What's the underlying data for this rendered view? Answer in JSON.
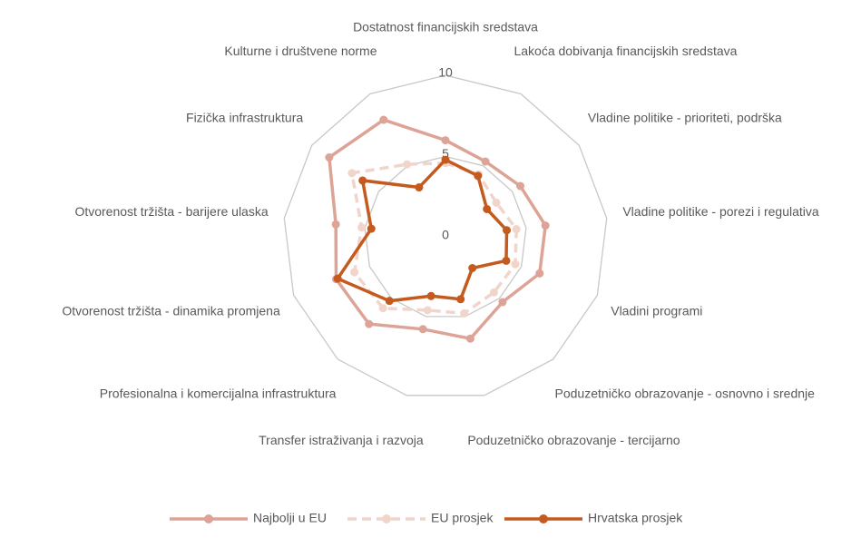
{
  "chart_data": {
    "type": "radar",
    "categories": [
      "Dostatnost financijskih sredstava",
      "Lakoća dobivanja financijskih sredstava",
      "Vladine politike - prioriteti, podrška",
      "Vladine politike - porezi i regulativa",
      "Vladini programi",
      "Poduzetničko obrazovanje - osnovno i srednje",
      "Poduzetničko obrazovanje - tercijarno",
      "Transfer istraživanja i razvoja",
      "Profesionalna i komercijalna  infrastruktura",
      "Otvorenost tržišta - dinamika promjena",
      "Otvorenost tržišta - barijere ulaska",
      "Fizička infrastruktura",
      "Kulturne i društvene norme"
    ],
    "series": [
      {
        "name": "Najbolji u EU",
        "color": "#dca396",
        "dashed": false,
        "values": [
          6.0,
          5.3,
          5.6,
          6.2,
          6.2,
          5.3,
          6.4,
          5.8,
          7.1,
          7.2,
          6.8,
          8.7,
          8.2
        ]
      },
      {
        "name": "EU prosjek",
        "color": "#f1d4ca",
        "dashed": true,
        "values": [
          4.6,
          4.4,
          3.8,
          4.4,
          4.6,
          4.5,
          4.8,
          4.6,
          5.8,
          6.0,
          5.2,
          7.0,
          5.1
        ]
      },
      {
        "name": "Hrvatska prosjek",
        "color": "#c55a1e",
        "dashed": false,
        "values": [
          4.8,
          4.3,
          3.1,
          3.8,
          4.0,
          2.5,
          3.9,
          3.7,
          5.2,
          7.1,
          4.6,
          6.2,
          3.5
        ]
      }
    ],
    "ylim": [
      0,
      10
    ],
    "yticks": [
      0,
      5,
      10
    ],
    "grid": true,
    "legend": "bottom"
  }
}
